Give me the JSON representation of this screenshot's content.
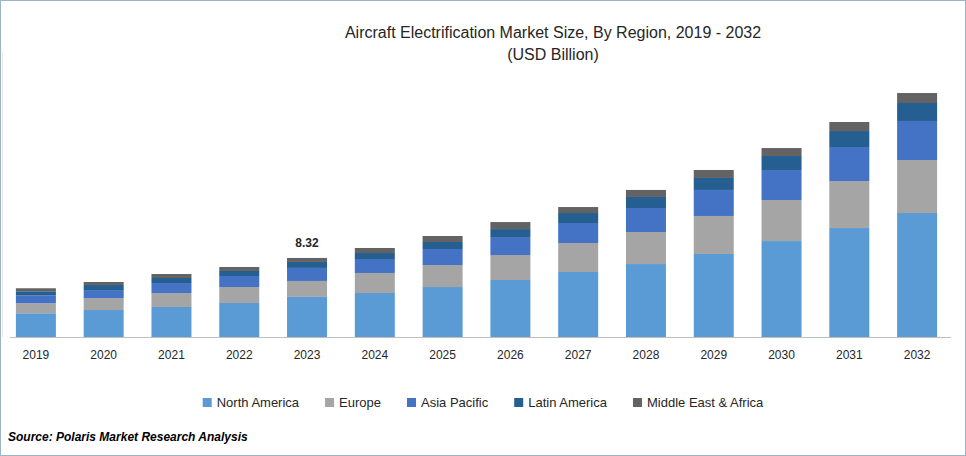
{
  "chart_data": {
    "type": "bar",
    "stacked": true,
    "title": "Aircraft Electrification Market Size, By Region, 2019 - 2032",
    "subtitle": "(USD Billion)",
    "source": "Source: Polaris Market Research Analysis",
    "categories": [
      "2019",
      "2020",
      "2021",
      "2022",
      "2023",
      "2024",
      "2025",
      "2026",
      "2027",
      "2028",
      "2029",
      "2030",
      "2031",
      "2032"
    ],
    "series": [
      {
        "name": "North America",
        "color": "#5b9bd5",
        "values": [
          2.5,
          2.84,
          3.16,
          3.58,
          4.22,
          4.63,
          5.26,
          6.0,
          6.84,
          7.68,
          8.74,
          10.1,
          11.47,
          13.05
        ]
      },
      {
        "name": "Europe",
        "color": "#a5a5a5",
        "values": [
          1.05,
          1.26,
          1.47,
          1.68,
          1.68,
          2.11,
          2.32,
          2.63,
          3.05,
          3.37,
          4.0,
          4.32,
          4.95,
          5.58
        ]
      },
      {
        "name": "Asia Pacific",
        "color": "#4472c4",
        "values": [
          0.84,
          0.84,
          1.05,
          1.16,
          1.37,
          1.47,
          1.68,
          1.89,
          2.11,
          2.53,
          2.74,
          3.16,
          3.58,
          4.11
        ]
      },
      {
        "name": "Latin America",
        "color": "#255e91",
        "values": [
          0.42,
          0.53,
          0.53,
          0.53,
          0.63,
          0.63,
          0.74,
          0.84,
          1.05,
          1.16,
          1.26,
          1.47,
          1.68,
          1.89
        ]
      },
      {
        "name": "Middle East & Africa",
        "color": "#636363",
        "values": [
          0.32,
          0.32,
          0.42,
          0.42,
          0.42,
          0.53,
          0.63,
          0.74,
          0.63,
          0.74,
          0.84,
          0.84,
          0.95,
          1.05
        ]
      }
    ],
    "annotations": [
      {
        "x": "2023",
        "label": "8.32",
        "value": 8.32
      }
    ],
    "ylim": [
      0,
      30
    ],
    "yticks": [],
    "tick_labels": "x",
    "grid": false,
    "legend": "bottom"
  }
}
